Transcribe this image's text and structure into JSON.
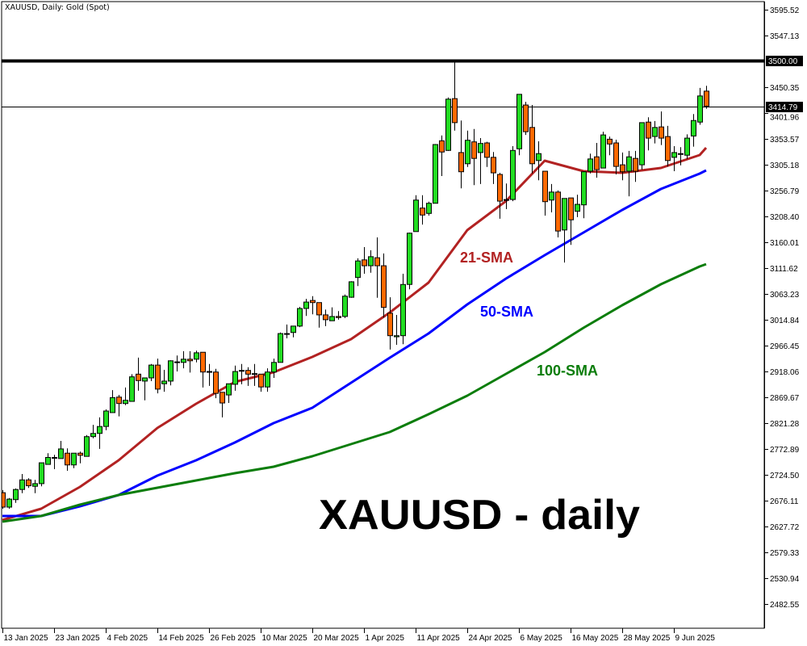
{
  "chart_title": "XAUUSD, Daily:  Gold (Spot)",
  "watermark": "XAUUSD - daily",
  "chart_data": {
    "type": "candlestick",
    "title": "XAUUSD, Daily:  Gold (Spot)",
    "ylim": [
      2469.9,
      3613.7
    ],
    "grid": false,
    "colors": {
      "up": "#22dd22",
      "down": "#ff6a00",
      "outline": "#000000",
      "sma21": "#b22222",
      "sma50": "#0000ff",
      "sma100": "#0b7d0b"
    },
    "y_ticks": [
      "3595.52",
      "3547.13",
      "3450.35",
      "3401.96",
      "3353.57",
      "3305.18",
      "3256.79",
      "3208.40",
      "3160.01",
      "3111.62",
      "3063.23",
      "3014.84",
      "2966.45",
      "2918.06",
      "2869.67",
      "2821.28",
      "2772.89",
      "2724.50",
      "2676.11",
      "2627.72",
      "2579.33",
      "2530.94",
      "2482.55"
    ],
    "x_ticks": [
      {
        "date": "2025-01-13",
        "label": "13 Jan 2025"
      },
      {
        "date": "2025-01-23",
        "label": "23 Jan 2025"
      },
      {
        "date": "2025-02-04",
        "label": "4 Feb 2025"
      },
      {
        "date": "2025-02-14",
        "label": "14 Feb 2025"
      },
      {
        "date": "2025-02-26",
        "label": "26 Feb 2025"
      },
      {
        "date": "2025-03-10",
        "label": "10 Mar 2025"
      },
      {
        "date": "2025-03-20",
        "label": "20 Mar 2025"
      },
      {
        "date": "2025-04-01",
        "label": "1 Apr 2025"
      },
      {
        "date": "2025-04-11",
        "label": "11 Apr 2025"
      },
      {
        "date": "2025-04-24",
        "label": "24 Apr 2025"
      },
      {
        "date": "2025-05-06",
        "label": "6 May 2025"
      },
      {
        "date": "2025-05-16",
        "label": "16 May 2025"
      },
      {
        "date": "2025-05-28",
        "label": "28 May 2025"
      },
      {
        "date": "2025-06-09",
        "label": "9 Jun 2025"
      }
    ],
    "horizontal_lines": [
      {
        "value": 3500.0,
        "label": "3500.00",
        "style": "thick"
      },
      {
        "value": 3414.79,
        "label": "3414.79",
        "style": "thin"
      }
    ],
    "candles_columns": [
      "date",
      "open",
      "high",
      "low",
      "close"
    ],
    "candles": [
      [
        "2025-01-13",
        2691,
        2696,
        2661,
        2664
      ],
      [
        "2025-01-14",
        2664,
        2681,
        2661,
        2679
      ],
      [
        "2025-01-15",
        2678,
        2699,
        2672,
        2697
      ],
      [
        "2025-01-16",
        2697,
        2726,
        2690,
        2715
      ],
      [
        "2025-01-17",
        2715,
        2718,
        2700,
        2704
      ],
      [
        "2025-01-20",
        2703,
        2715,
        2690,
        2708
      ],
      [
        "2025-01-21",
        2708,
        2747,
        2703,
        2747
      ],
      [
        "2025-01-22",
        2744,
        2765,
        2744,
        2757
      ],
      [
        "2025-01-23",
        2756,
        2762,
        2735,
        2757
      ],
      [
        "2025-01-24",
        2755,
        2788,
        2755,
        2773
      ],
      [
        "2025-01-27",
        2765,
        2774,
        2732,
        2743
      ],
      [
        "2025-01-28",
        2743,
        2765,
        2737,
        2765
      ],
      [
        "2025-01-29",
        2765,
        2768,
        2746,
        2761
      ],
      [
        "2025-01-30",
        2759,
        2799,
        2759,
        2796
      ],
      [
        "2025-01-31",
        2796,
        2818,
        2793,
        2802
      ],
      [
        "2025-02-03",
        2802,
        2832,
        2773,
        2815
      ],
      [
        "2025-02-04",
        2815,
        2847,
        2808,
        2844
      ],
      [
        "2025-02-05",
        2841,
        2883,
        2841,
        2869
      ],
      [
        "2025-02-06",
        2870,
        2874,
        2834,
        2858
      ],
      [
        "2025-02-07",
        2858,
        2888,
        2855,
        2864
      ],
      [
        "2025-02-10",
        2862,
        2913,
        2862,
        2908
      ],
      [
        "2025-02-11",
        2913,
        2944,
        2882,
        2901
      ],
      [
        "2025-02-12",
        2900,
        2906,
        2864,
        2906
      ],
      [
        "2025-02-13",
        2906,
        2932,
        2900,
        2930
      ],
      [
        "2025-02-14",
        2930,
        2942,
        2877,
        2885
      ],
      [
        "2025-02-17",
        2895,
        2921,
        2880,
        2900
      ],
      [
        "2025-02-18",
        2900,
        2939,
        2892,
        2938
      ],
      [
        "2025-02-19",
        2935,
        2948,
        2918,
        2936
      ],
      [
        "2025-02-20",
        2935,
        2956,
        2924,
        2941
      ],
      [
        "2025-02-21",
        2941,
        2956,
        2916,
        2938
      ],
      [
        "2025-02-24",
        2941,
        2957,
        2935,
        2953
      ],
      [
        "2025-02-25",
        2954,
        2954,
        2888,
        2917
      ],
      [
        "2025-02-26",
        2918,
        2932,
        2891,
        2917
      ],
      [
        "2025-02-27",
        2917,
        2923,
        2868,
        2877
      ],
      [
        "2025-02-28",
        2879,
        2879,
        2832,
        2859
      ],
      [
        "2025-03-03",
        2874,
        2895,
        2859,
        2895
      ],
      [
        "2025-03-04",
        2894,
        2929,
        2882,
        2918
      ],
      [
        "2025-03-05",
        2920,
        2932,
        2894,
        2919
      ],
      [
        "2025-03-06",
        2920,
        2926,
        2891,
        2913
      ],
      [
        "2025-03-07",
        2913,
        2932,
        2891,
        2914
      ],
      [
        "2025-03-10",
        2913,
        2913,
        2880,
        2889
      ],
      [
        "2025-03-11",
        2889,
        2924,
        2880,
        2917
      ],
      [
        "2025-03-12",
        2917,
        2942,
        2906,
        2935
      ],
      [
        "2025-03-13",
        2935,
        2991,
        2935,
        2989
      ],
      [
        "2025-03-14",
        2988,
        3006,
        2980,
        2989
      ],
      [
        "2025-03-17",
        2991,
        3003,
        2982,
        3003
      ],
      [
        "2025-03-18",
        3003,
        3039,
        3001,
        3036
      ],
      [
        "2025-03-19",
        3036,
        3054,
        3022,
        3048
      ],
      [
        "2025-03-20",
        3051,
        3059,
        3025,
        3047
      ],
      [
        "2025-03-21",
        3047,
        3047,
        3000,
        3024
      ],
      [
        "2025-03-24",
        3024,
        3034,
        3003,
        3015
      ],
      [
        "2025-03-25",
        3013,
        3038,
        3013,
        3021
      ],
      [
        "2025-03-26",
        3021,
        3031,
        3015,
        3019
      ],
      [
        "2025-03-27",
        3021,
        3062,
        3018,
        3059
      ],
      [
        "2025-03-28",
        3057,
        3087,
        3056,
        3086
      ],
      [
        "2025-03-31",
        3094,
        3130,
        3078,
        3125
      ],
      [
        "2025-04-01",
        3127,
        3151,
        3101,
        3116
      ],
      [
        "2025-04-02",
        3116,
        3145,
        3103,
        3133
      ],
      [
        "2025-04-03",
        3131,
        3169,
        3056,
        3116
      ],
      [
        "2025-04-04",
        3116,
        3139,
        3019,
        3038
      ],
      [
        "2025-04-07",
        3027,
        3057,
        2959,
        2985
      ],
      [
        "2025-04-08",
        2983,
        3024,
        2968,
        2985
      ],
      [
        "2025-04-09",
        2985,
        3101,
        2969,
        3081
      ],
      [
        "2025-04-10",
        3081,
        3178,
        3072,
        3177
      ],
      [
        "2025-04-11",
        3180,
        3248,
        3180,
        3239
      ],
      [
        "2025-04-14",
        3224,
        3248,
        3193,
        3211
      ],
      [
        "2025-04-15",
        3214,
        3236,
        3210,
        3233
      ],
      [
        "2025-04-16",
        3233,
        3344,
        3233,
        3343
      ],
      [
        "2025-04-17",
        3350,
        3360,
        3284,
        3329
      ],
      [
        "2025-04-21",
        3332,
        3431,
        3331,
        3428
      ],
      [
        "2025-04-22",
        3429,
        3500,
        3369,
        3384
      ],
      [
        "2025-04-23",
        3328,
        3388,
        3261,
        3292
      ],
      [
        "2025-04-24",
        3307,
        3369,
        3301,
        3351
      ],
      [
        "2025-04-25",
        3348,
        3372,
        3267,
        3317
      ],
      [
        "2025-04-28",
        3328,
        3355,
        3269,
        3345
      ],
      [
        "2025-04-29",
        3346,
        3348,
        3301,
        3319
      ],
      [
        "2025-04-30",
        3319,
        3329,
        3269,
        3290
      ],
      [
        "2025-05-01",
        3287,
        3290,
        3204,
        3237
      ],
      [
        "2025-05-02",
        3240,
        3270,
        3222,
        3240
      ],
      [
        "2025-05-05",
        3240,
        3340,
        3237,
        3332
      ],
      [
        "2025-05-06",
        3335,
        3437,
        3323,
        3437
      ],
      [
        "2025-05-07",
        3417,
        3423,
        3361,
        3367
      ],
      [
        "2025-05-08",
        3375,
        3417,
        3289,
        3307
      ],
      [
        "2025-05-09",
        3313,
        3349,
        3276,
        3326
      ],
      [
        "2025-05-12",
        3293,
        3293,
        3210,
        3236
      ],
      [
        "2025-05-13",
        3239,
        3269,
        3216,
        3254
      ],
      [
        "2025-05-14",
        3254,
        3257,
        3169,
        3181
      ],
      [
        "2025-05-15",
        3183,
        3242,
        3122,
        3242
      ],
      [
        "2025-05-16",
        3243,
        3243,
        3155,
        3202
      ],
      [
        "2025-05-19",
        3218,
        3249,
        3207,
        3231
      ],
      [
        "2025-05-20",
        3230,
        3293,
        3205,
        3292
      ],
      [
        "2025-05-21",
        3293,
        3326,
        3289,
        3316
      ],
      [
        "2025-05-22",
        3320,
        3346,
        3281,
        3296
      ],
      [
        "2025-05-23",
        3299,
        3367,
        3299,
        3361
      ],
      [
        "2025-05-26",
        3353,
        3358,
        3323,
        3344
      ],
      [
        "2025-05-27",
        3346,
        3352,
        3287,
        3302
      ],
      [
        "2025-05-28",
        3305,
        3328,
        3276,
        3292
      ],
      [
        "2025-05-29",
        3293,
        3331,
        3246,
        3320
      ],
      [
        "2025-05-30",
        3317,
        3331,
        3273,
        3293
      ],
      [
        "2025-06-02",
        3305,
        3384,
        3296,
        3384
      ],
      [
        "2025-06-03",
        3385,
        3394,
        3332,
        3355
      ],
      [
        "2025-06-04",
        3358,
        3387,
        3345,
        3375
      ],
      [
        "2025-06-05",
        3376,
        3405,
        3342,
        3355
      ],
      [
        "2025-06-06",
        3358,
        3378,
        3302,
        3313
      ],
      [
        "2025-06-09",
        3319,
        3340,
        3293,
        3328
      ],
      [
        "2025-06-10",
        3326,
        3338,
        3304,
        3325
      ],
      [
        "2025-06-11",
        3323,
        3362,
        3316,
        3355
      ],
      [
        "2025-06-12",
        3359,
        3400,
        3339,
        3388
      ],
      [
        "2025-06-13",
        3385,
        3449,
        3380,
        3434
      ],
      [
        "2025-06-16",
        3443,
        3453,
        3410,
        3415
      ]
    ],
    "series": [
      {
        "name": "21-SMA",
        "color": "#b22222",
        "points": [
          [
            "2025-01-13",
            2639.8
          ],
          [
            "2025-01-21",
            2661.0
          ],
          [
            "2025-01-29",
            2701.8
          ],
          [
            "2025-02-06",
            2751.7
          ],
          [
            "2025-02-14",
            2812.2
          ],
          [
            "2025-02-24",
            2857.6
          ],
          [
            "2025-03-04",
            2898.4
          ],
          [
            "2025-03-12",
            2916.6
          ],
          [
            "2025-03-20",
            2945.3
          ],
          [
            "2025-03-28",
            2978.6
          ],
          [
            "2025-04-07",
            3028.4
          ],
          [
            "2025-04-15",
            3084.4
          ],
          [
            "2025-04-24",
            3182.7
          ],
          [
            "2025-05-02",
            3237.1
          ],
          [
            "2025-05-12",
            3312.7
          ],
          [
            "2025-05-20",
            3293.1
          ],
          [
            "2025-05-28",
            3290.1
          ],
          [
            "2025-06-05",
            3299.1
          ],
          [
            "2025-06-13",
            3323.3
          ],
          [
            "2025-06-16",
            3336.9
          ]
        ]
      },
      {
        "name": "50-SMA",
        "color": "#0000ff",
        "points": [
          [
            "2025-01-13",
            2647.4
          ],
          [
            "2025-01-21",
            2647.4
          ],
          [
            "2025-01-29",
            2665.5
          ],
          [
            "2025-02-06",
            2686.7
          ],
          [
            "2025-02-14",
            2723.0
          ],
          [
            "2025-02-24",
            2751.7
          ],
          [
            "2025-03-04",
            2785.0
          ],
          [
            "2025-03-12",
            2821.3
          ],
          [
            "2025-03-20",
            2850.0
          ],
          [
            "2025-03-28",
            2896.9
          ],
          [
            "2025-04-07",
            2943.8
          ],
          [
            "2025-04-15",
            2989.1
          ],
          [
            "2025-04-24",
            3043.6
          ],
          [
            "2025-05-02",
            3092.0
          ],
          [
            "2025-05-12",
            3135.8
          ],
          [
            "2025-05-20",
            3178.2
          ],
          [
            "2025-05-28",
            3220.5
          ],
          [
            "2025-06-05",
            3259.8
          ],
          [
            "2025-06-13",
            3288.6
          ],
          [
            "2025-06-16",
            3294.6
          ]
        ]
      },
      {
        "name": "100-SMA",
        "color": "#0b7d0b",
        "points": [
          [
            "2025-01-13",
            2636.8
          ],
          [
            "2025-01-21",
            2647.4
          ],
          [
            "2025-01-29",
            2668.5
          ],
          [
            "2025-02-06",
            2686.7
          ],
          [
            "2025-02-14",
            2700.3
          ],
          [
            "2025-02-24",
            2713.9
          ],
          [
            "2025-03-04",
            2727.5
          ],
          [
            "2025-03-12",
            2739.6
          ],
          [
            "2025-03-20",
            2759.3
          ],
          [
            "2025-03-28",
            2782.0
          ],
          [
            "2025-04-07",
            2804.7
          ],
          [
            "2025-04-15",
            2837.9
          ],
          [
            "2025-04-24",
            2872.7
          ],
          [
            "2025-05-02",
            2913.5
          ],
          [
            "2025-05-12",
            2954.4
          ],
          [
            "2025-05-20",
            2999.7
          ],
          [
            "2025-05-28",
            3042.1
          ],
          [
            "2025-06-05",
            3081.4
          ],
          [
            "2025-06-13",
            3114.6
          ],
          [
            "2025-06-16",
            3119.1
          ]
        ]
      }
    ]
  }
}
